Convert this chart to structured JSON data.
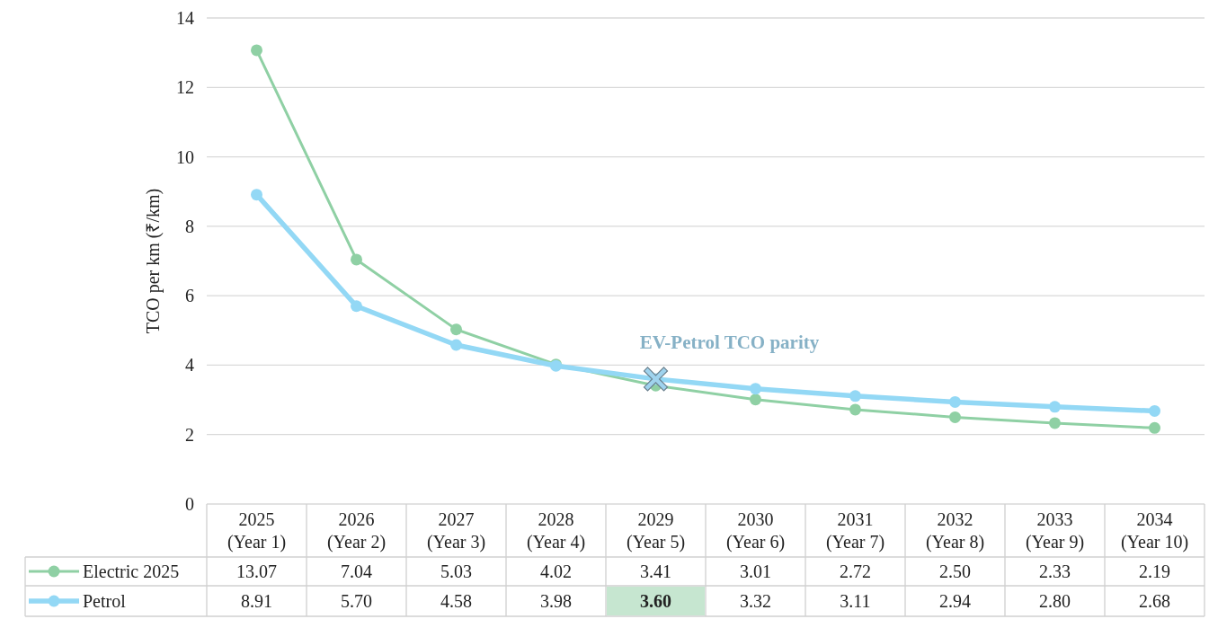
{
  "chart_data": {
    "type": "line",
    "ylabel": "TCO per km (₹/km)",
    "categories": [
      "2025 (Year 1)",
      "2026 (Year 2)",
      "2027 (Year 3)",
      "2028 (Year 4)",
      "2029 (Year 5)",
      "2030 (Year 6)",
      "2031 (Year 7)",
      "2032 (Year 8)",
      "2033 (Year 9)",
      "2034 (Year 10)"
    ],
    "series": [
      {
        "name": "Electric 2025",
        "color": "#8fd0a4",
        "values": [
          13.07,
          7.04,
          5.03,
          4.02,
          3.41,
          3.01,
          2.72,
          2.5,
          2.33,
          2.19
        ],
        "value_labels": [
          "13.07",
          "7.04",
          "5.03",
          "4.02",
          "3.41",
          "3.01",
          "2.72",
          "2.50",
          "2.33",
          "2.19"
        ],
        "line_style": "solid"
      },
      {
        "name": "Petrol",
        "color": "#93d8f5",
        "values": [
          8.91,
          5.7,
          4.58,
          3.98,
          3.6,
          3.32,
          3.11,
          2.94,
          2.8,
          2.68
        ],
        "value_labels": [
          "8.91",
          "5.70",
          "4.58",
          "3.98",
          "3.60",
          "3.32",
          "3.11",
          "2.94",
          "2.80",
          "2.68"
        ],
        "line_style": "solid"
      }
    ],
    "ylim": [
      0,
      14
    ],
    "yticks": [
      0,
      2,
      4,
      6,
      8,
      10,
      12,
      14
    ],
    "grid": "y",
    "legend": "bottom",
    "marker": "circle",
    "annotations": [
      {
        "text": "EV-Petrol TCO parity",
        "x": "2029 (Year 5)",
        "y": 3.6
      }
    ]
  }
}
